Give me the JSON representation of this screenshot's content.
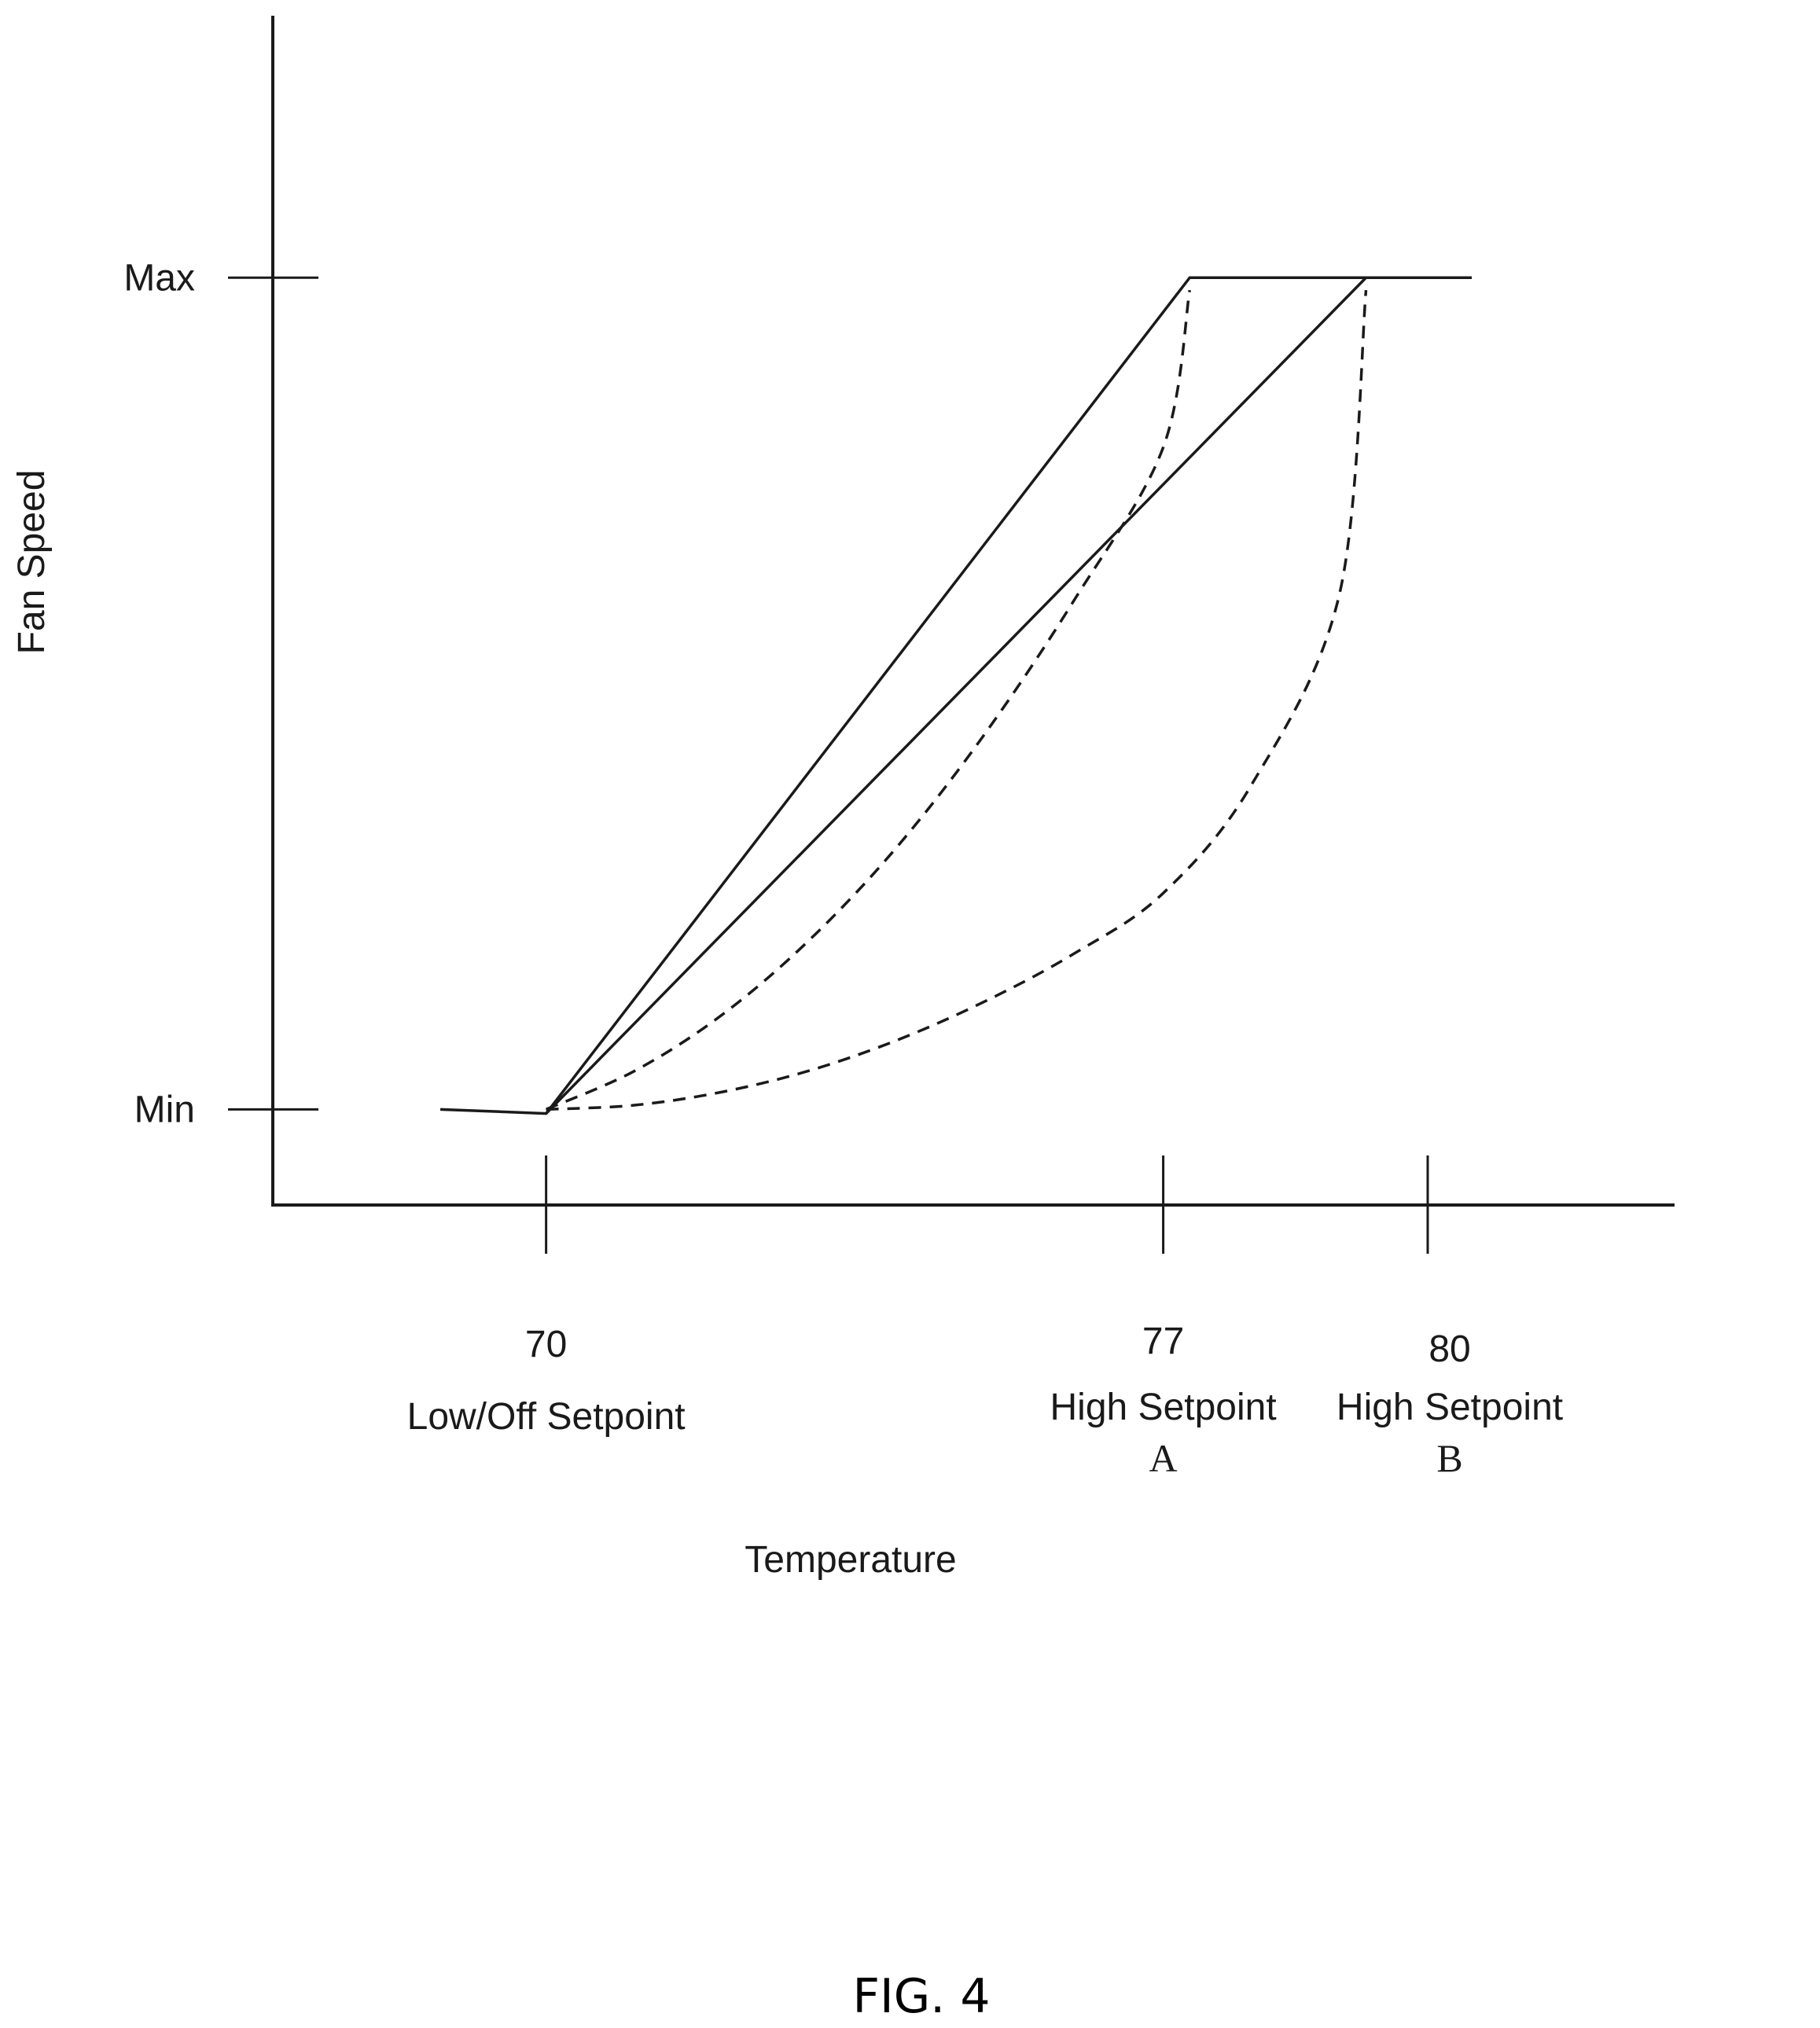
{
  "chart_data": {
    "type": "line",
    "title": "",
    "xlabel": "Temperature",
    "ylabel": "Fan Speed",
    "x_ticks": [
      {
        "value": 70,
        "label_value": "70",
        "label_text": "Low/Off Setpoint",
        "label_sub": ""
      },
      {
        "value": 77,
        "label_value": "77",
        "label_text": "High Setpoint",
        "label_sub": "A"
      },
      {
        "value": 80,
        "label_value": "80",
        "label_text": "High Setpoint",
        "label_sub": "B"
      }
    ],
    "y_ticks": [
      {
        "value": 0,
        "label": "Min"
      },
      {
        "value": 1,
        "label": "Max"
      }
    ],
    "xlim": [
      66.9,
      82.8
    ],
    "ylim": [
      -0.115,
      1.315
    ],
    "grid": false,
    "legend": "none",
    "series": [
      {
        "style": "solid",
        "x": [
          68.8,
          70.0,
          77.3,
          79.3
        ],
        "y": [
          0.0,
          -0.005,
          1.0,
          1.0
        ]
      },
      {
        "style": "solid",
        "x": [
          70.0,
          79.3,
          80.5
        ],
        "y": [
          -0.005,
          1.0,
          1.0
        ]
      },
      {
        "style": "dashed",
        "shape": "curve",
        "x": [
          70.0,
          71.0,
          72.0,
          73.0,
          74.0,
          75.0,
          76.0,
          77.0,
          77.3
        ],
        "y": [
          0.0,
          0.046,
          0.114,
          0.205,
          0.318,
          0.455,
          0.614,
          0.796,
          0.985
        ]
      },
      {
        "style": "dashed",
        "shape": "curve",
        "x": [
          70.0,
          71.0,
          72.0,
          73.0,
          74.0,
          75.0,
          76.0,
          77.0,
          78.0,
          79.0,
          79.3
        ],
        "y": [
          0.0,
          0.005,
          0.021,
          0.047,
          0.084,
          0.131,
          0.188,
          0.26,
          0.39,
          0.62,
          0.985
        ]
      }
    ]
  },
  "caption": "FIG. 4",
  "colors": {
    "ink": "#1a1a1a",
    "background": "#ffffff"
  }
}
